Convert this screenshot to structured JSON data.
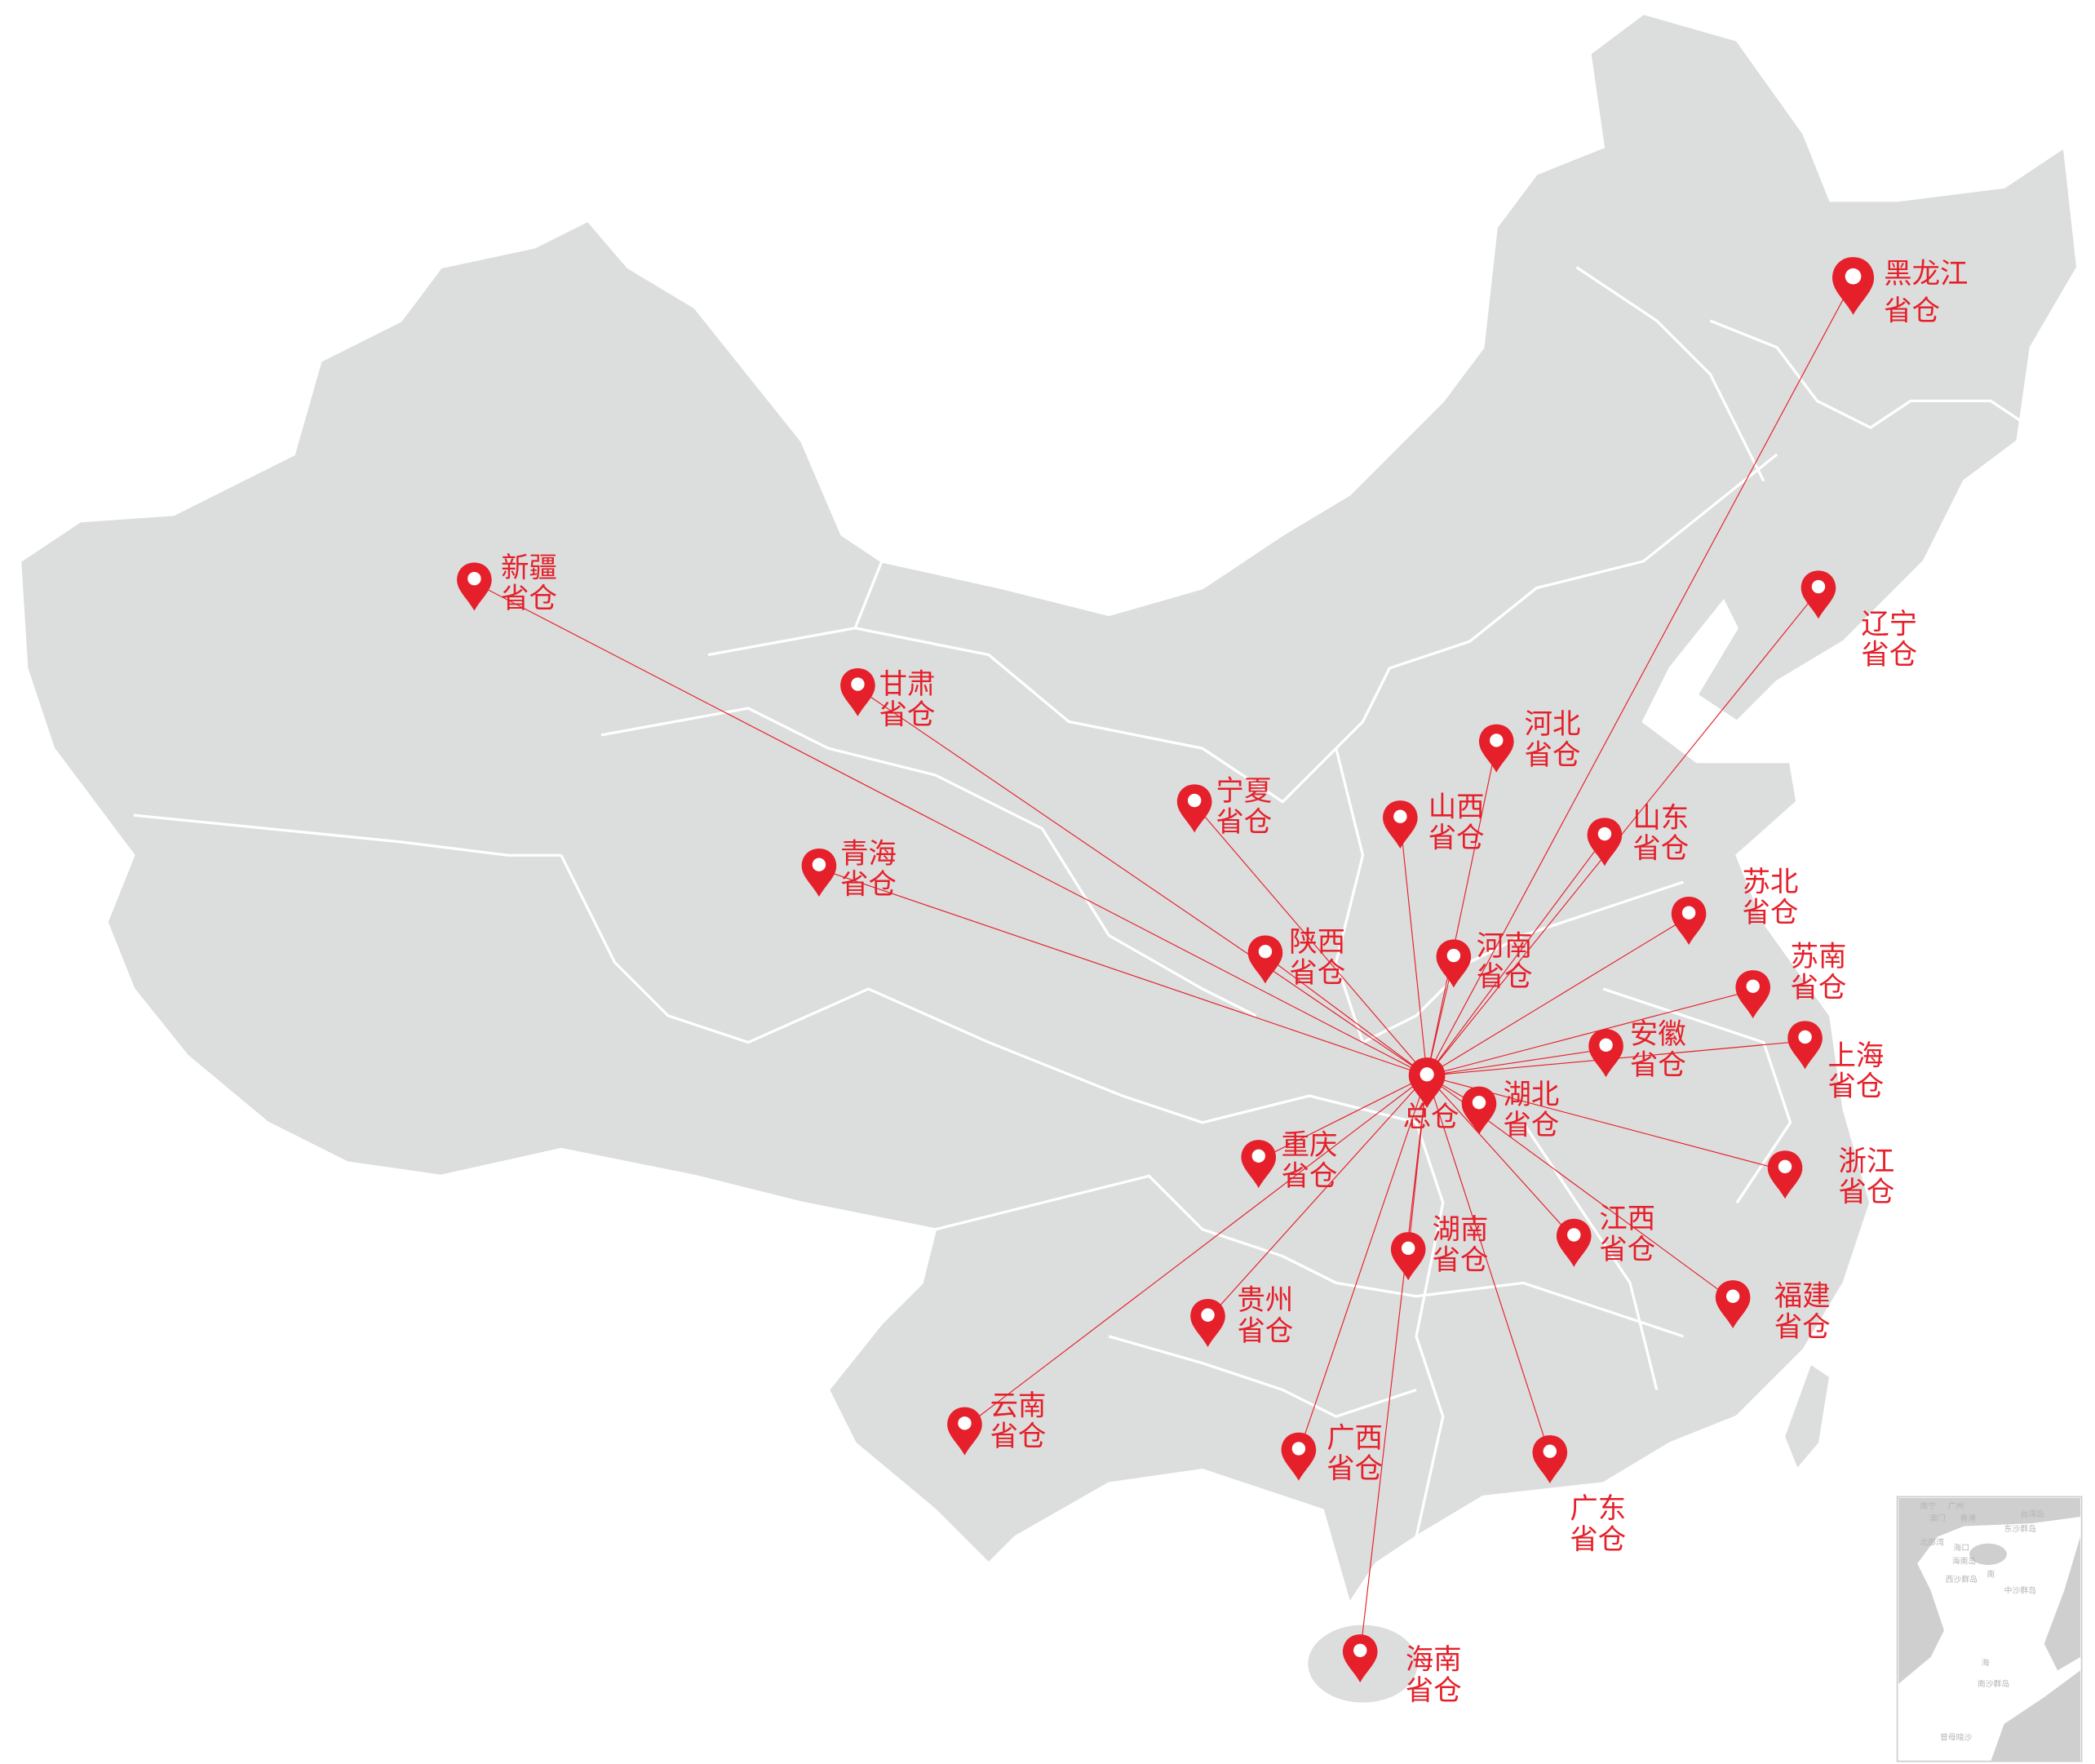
{
  "colors": {
    "pin": "#e5202a",
    "route_line": "#e5202a",
    "land": "#dcdddd",
    "border": "#ffffff",
    "sea": "#ffffff"
  },
  "hub": {
    "label": "总仓",
    "icon": "map-pin-icon"
  },
  "warehouse_suffix": "省仓",
  "warehouses": [
    {
      "name": "黑龙江"
    },
    {
      "name": "辽宁"
    },
    {
      "name": "河北"
    },
    {
      "name": "山东"
    },
    {
      "name": "山西"
    },
    {
      "name": "宁夏"
    },
    {
      "name": "甘肃"
    },
    {
      "name": "新疆"
    },
    {
      "name": "青海"
    },
    {
      "name": "陕西"
    },
    {
      "name": "河南"
    },
    {
      "name": "苏北"
    },
    {
      "name": "苏南"
    },
    {
      "name": "安徽"
    },
    {
      "name": "上海"
    },
    {
      "name": "湖北"
    },
    {
      "name": "浙江"
    },
    {
      "name": "重庆"
    },
    {
      "name": "江西"
    },
    {
      "name": "湖南"
    },
    {
      "name": "福建"
    },
    {
      "name": "贵州"
    },
    {
      "name": "云南"
    },
    {
      "name": "广西"
    },
    {
      "name": "广东"
    },
    {
      "name": "海南"
    }
  ],
  "inset": {
    "labels": [
      "南宁",
      "广州",
      "澳门",
      "香港",
      "台湾岛",
      "东沙群岛",
      "北部湾",
      "海口",
      "海南岛",
      "西沙群岛",
      "南",
      "中沙群岛",
      "海",
      "南沙群岛",
      "曾母暗沙"
    ]
  }
}
